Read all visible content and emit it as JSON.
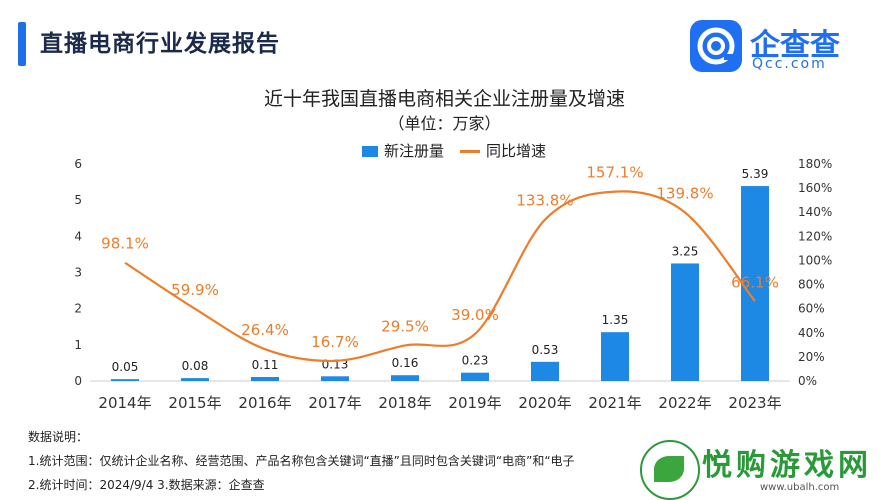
{
  "header": {
    "title": "直播电商行业发展报告"
  },
  "logo": {
    "name": "企查查",
    "url": "Qcc.com"
  },
  "chart_data": {
    "type": "bar",
    "title": "近十年我国直播电商相关企业注册量及增速",
    "subtitle": "（单位：万家）",
    "categories": [
      "2014年",
      "2015年",
      "2016年",
      "2017年",
      "2018年",
      "2019年",
      "2020年",
      "2021年",
      "2022年",
      "2023年"
    ],
    "series": [
      {
        "name": "新注册量",
        "type": "bar",
        "axis": "left",
        "color": "#1e88e5",
        "values": [
          0.05,
          0.08,
          0.11,
          0.13,
          0.16,
          0.23,
          0.53,
          1.35,
          3.25,
          5.39
        ],
        "labels": [
          "0.05",
          "0.08",
          "0.11",
          "0.13",
          "0.16",
          "0.23",
          "0.53",
          "1.35",
          "3.25",
          "5.39"
        ]
      },
      {
        "name": "同比增速",
        "type": "line",
        "axis": "right",
        "color": "#ee7d2b",
        "values": [
          98.1,
          59.9,
          26.4,
          16.7,
          29.5,
          39.0,
          133.8,
          157.1,
          139.8,
          66.1
        ],
        "labels": [
          "98.1%",
          "59.9%",
          "26.4%",
          "16.7%",
          "29.5%",
          "39.0%",
          "133.8%",
          "157.1%",
          "139.8%",
          "66.1%"
        ]
      }
    ],
    "ylim": [
      0,
      6
    ],
    "y_ticks": [
      "0",
      "1",
      "2",
      "3",
      "4",
      "5",
      "6"
    ],
    "y2lim": [
      0,
      180
    ],
    "y2_ticks": [
      "0%",
      "20%",
      "40%",
      "60%",
      "80%",
      "100%",
      "120%",
      "140%",
      "160%",
      "180%"
    ],
    "legend_position": "top-center",
    "grid": false
  },
  "notes": {
    "heading": "数据说明：",
    "line1": "1.统计范围：仅统计企业名称、经营范围、产品名称包含关键词“直播”且同时包含关键词“电商”和“电子",
    "line2": "2.统计时间：2024/9/4      3.数据来源：企查查"
  },
  "watermark": {
    "text": "悦购游戏网",
    "url": "www.ubalh.com"
  }
}
